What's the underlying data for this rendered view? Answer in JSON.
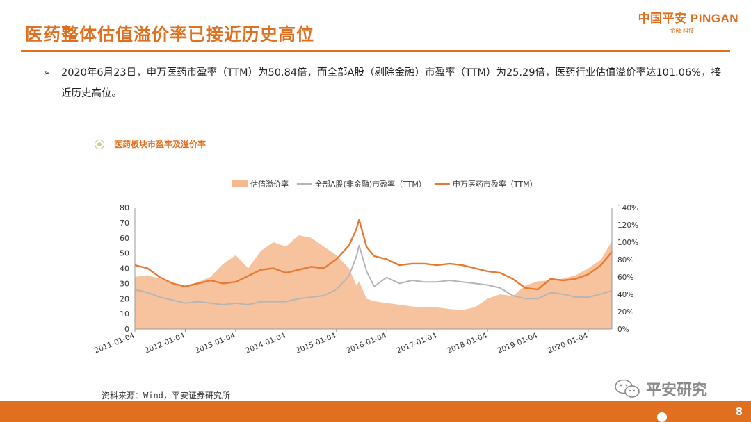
{
  "header": {
    "title": "医药整体估值溢价率已接近历史高位",
    "logo_main": "中国平安 PINGAN",
    "logo_sub": "金融·科技"
  },
  "bullet": {
    "arrow": "➢",
    "text": "2020年6月23日，申万医药市盈率（TTM）为50.84倍，而全部A股（剔除金融）市盈率（TTM）为25.29倍，医药行业估值溢价率达101.06%，接近历史高位。"
  },
  "chart_heading": "医药板块市盈率及溢价率",
  "source": "资料来源：Wind，平安证券研究所",
  "watermark": "平安研究",
  "page_number": "8",
  "colors": {
    "accent": "#E0701F",
    "premium_area": "#F6B88E",
    "all_a": "#B5B5B5",
    "pharma": "#E57A32"
  },
  "chart_data": {
    "type": "line",
    "legend_position": "top",
    "x_tick_labels": [
      "2011-01-04",
      "2012-01-04",
      "2013-01-04",
      "2014-01-04",
      "2015-01-04",
      "2016-01-04",
      "2017-01-04",
      "2018-01-04",
      "2019-01-04",
      "2020-01-04"
    ],
    "y_left": {
      "lim": [
        0,
        80
      ],
      "ticks": [
        "0",
        "10",
        "20",
        "30",
        "40",
        "50",
        "60",
        "70",
        "80"
      ]
    },
    "y_right": {
      "lim": [
        0,
        140
      ],
      "ticks": [
        "0%",
        "20%",
        "40%",
        "60%",
        "80%",
        "100%",
        "120%",
        "140%"
      ]
    },
    "x": [
      2011.0,
      2011.25,
      2011.5,
      2011.75,
      2012.0,
      2012.25,
      2012.5,
      2012.75,
      2013.0,
      2013.25,
      2013.5,
      2013.75,
      2014.0,
      2014.25,
      2014.5,
      2014.75,
      2015.0,
      2015.25,
      2015.4,
      2015.45,
      2015.6,
      2015.75,
      2016.0,
      2016.25,
      2016.5,
      2016.75,
      2017.0,
      2017.25,
      2017.5,
      2017.75,
      2018.0,
      2018.25,
      2018.5,
      2018.75,
      2019.0,
      2019.25,
      2019.5,
      2019.75,
      2020.0,
      2020.25,
      2020.47
    ],
    "series": [
      {
        "name": "估值溢价率",
        "axis": "right",
        "style": "area",
        "values": [
          60,
          62,
          58,
          52,
          50,
          54,
          60,
          75,
          85,
          70,
          90,
          100,
          95,
          108,
          105,
          95,
          85,
          70,
          50,
          55,
          35,
          32,
          30,
          28,
          26,
          25,
          25,
          23,
          22,
          25,
          35,
          40,
          38,
          50,
          55,
          56,
          58,
          62,
          70,
          80,
          101
        ]
      },
      {
        "name": "全部A股(非金融)市盈率（TTM）",
        "axis": "left",
        "style": "line",
        "values": [
          26,
          24,
          21,
          19,
          17,
          18,
          17,
          16,
          17,
          16,
          18,
          18,
          18,
          20,
          21,
          22,
          26,
          35,
          48,
          55,
          38,
          28,
          34,
          30,
          32,
          31,
          31,
          32,
          31,
          30,
          29,
          27,
          22,
          20,
          20,
          24,
          23,
          21,
          21,
          23,
          25.29
        ]
      },
      {
        "name": "申万医药市盈率（TTM）",
        "axis": "left",
        "style": "line",
        "values": [
          42,
          40,
          34,
          30,
          28,
          30,
          32,
          30,
          31,
          35,
          39,
          40,
          37,
          39,
          41,
          40,
          46,
          55,
          66,
          72,
          54,
          48,
          46,
          42,
          43,
          43,
          42,
          43,
          42,
          40,
          38,
          37,
          33,
          27,
          26,
          33,
          32,
          33,
          36,
          42,
          50.84
        ]
      }
    ]
  }
}
